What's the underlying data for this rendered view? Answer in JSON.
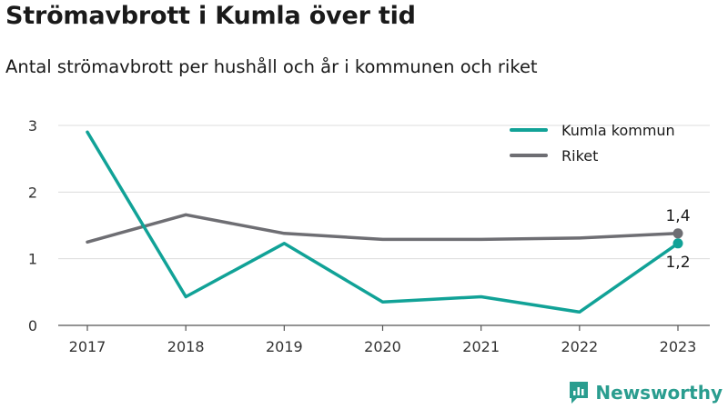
{
  "header": {
    "title": "Strömavbrott i Kumla över tid",
    "subtitle": "Antal strömavbrott per hushåll och år i kommunen och riket"
  },
  "brand": {
    "name": "Newsworthy",
    "icon": "newsworthy-logo-icon",
    "color": "#2a9d8f"
  },
  "chart_data": {
    "type": "line",
    "title": "Strömavbrott i Kumla över tid",
    "subtitle": "Antal strömavbrott per hushåll och år i kommunen och riket",
    "xlabel": "",
    "ylabel": "",
    "x": [
      "2017",
      "2018",
      "2019",
      "2020",
      "2021",
      "2022",
      "2023"
    ],
    "ylim": [
      0,
      3
    ],
    "yticks": [
      0,
      1,
      2,
      3
    ],
    "grid": true,
    "legend_position": "top-right",
    "series": [
      {
        "name": "Kumla kommun",
        "color": "#11a297",
        "values": [
          2.9,
          0.43,
          1.23,
          0.35,
          0.43,
          0.2,
          1.23
        ],
        "end_label": "1,2"
      },
      {
        "name": "Riket",
        "color": "#6e6e73",
        "values": [
          1.25,
          1.66,
          1.38,
          1.29,
          1.29,
          1.31,
          1.38
        ],
        "end_label": "1,4"
      }
    ]
  }
}
